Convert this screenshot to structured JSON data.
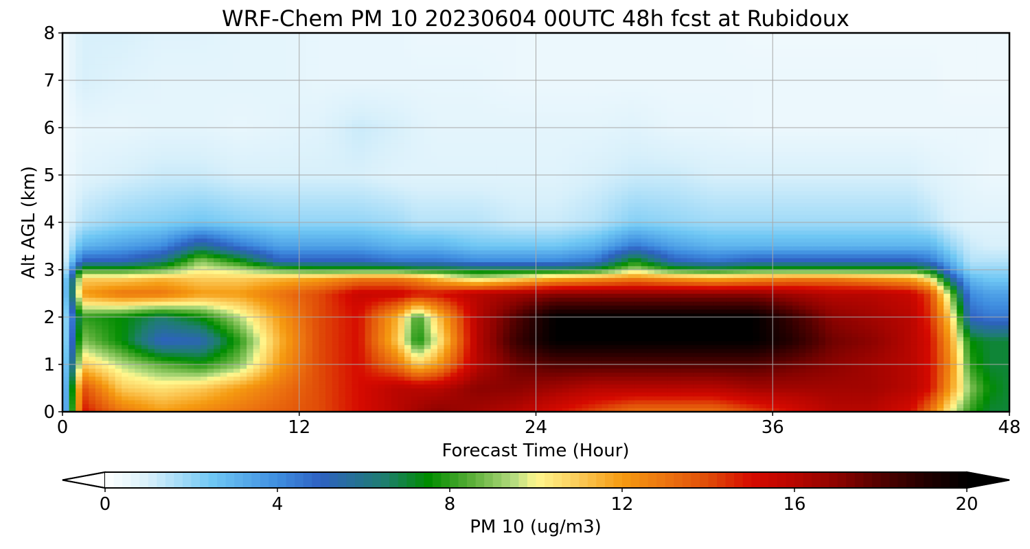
{
  "chart_data": {
    "type": "heatmap",
    "title": "WRF-Chem PM 10  20230604 00UTC 48h fcst at Rubidoux",
    "xlabel": "Forecast Time (Hour)",
    "ylabel": "Alt AGL (km)",
    "xlim": [
      0,
      48
    ],
    "ylim": [
      0,
      8
    ],
    "xticks": [
      "0",
      "12",
      "24",
      "36",
      "48"
    ],
    "yticks": [
      "0",
      "1",
      "2",
      "3",
      "4",
      "5",
      "6",
      "7",
      "8"
    ],
    "grid": true,
    "x": [
      0,
      1,
      3,
      5,
      7,
      9,
      11,
      13,
      15,
      17,
      18,
      19,
      21,
      23,
      25,
      27,
      29,
      31,
      33,
      35,
      37,
      39,
      41,
      43,
      44,
      45,
      46,
      47,
      48
    ],
    "y": [
      0,
      0.5,
      1,
      1.5,
      2,
      2.5,
      2.8,
      3,
      3.2,
      3.5,
      4,
      5,
      6,
      7,
      8
    ],
    "z": [
      [
        1,
        15,
        13,
        12,
        12.5,
        13,
        13.5,
        14,
        15,
        16,
        16.5,
        17,
        16.5,
        16,
        15,
        14,
        13,
        13,
        13,
        14,
        15,
        16,
        16,
        15,
        13,
        10,
        8,
        7,
        7
      ],
      [
        1,
        14,
        11,
        10.5,
        11,
        12,
        13,
        14,
        15,
        16,
        16,
        16,
        17,
        17,
        16.5,
        16,
        16,
        16,
        16,
        16.5,
        16.5,
        16.5,
        16.5,
        16,
        15,
        12,
        9,
        7.5,
        7
      ],
      [
        1,
        11,
        9.5,
        8.5,
        7.8,
        9,
        12,
        14,
        15,
        13,
        11,
        12,
        16,
        17.5,
        18,
        18,
        18,
        18,
        18,
        18,
        17.5,
        17,
        16.5,
        16,
        15,
        12.5,
        8,
        7,
        7
      ],
      [
        1,
        9,
        7.5,
        5,
        5.2,
        8,
        11.5,
        14,
        15,
        11,
        7.5,
        10,
        16,
        18.5,
        20,
        20,
        20,
        20,
        20,
        20,
        19,
        17.5,
        17,
        16,
        15,
        12,
        7.5,
        7,
        7
      ],
      [
        1,
        8,
        7.5,
        6.5,
        7.5,
        9.5,
        12,
        14,
        15,
        11.5,
        8,
        11,
        16,
        18,
        20,
        20,
        20,
        20,
        20,
        20,
        18.5,
        17,
        16.5,
        16,
        14.5,
        11,
        5,
        4.5,
        4.5
      ],
      [
        1,
        12,
        13,
        13,
        12,
        12,
        13,
        14,
        15.5,
        15.5,
        15,
        15,
        16,
        16.5,
        17,
        17,
        17,
        17,
        17,
        17,
        16.5,
        16,
        16,
        15.5,
        14,
        9,
        4,
        3.5,
        3.5
      ],
      [
        1,
        11,
        11,
        11.5,
        11,
        11,
        11.5,
        12,
        13,
        13,
        12.5,
        11.5,
        10,
        11,
        12,
        12.5,
        13,
        12.5,
        12,
        12.5,
        13,
        13,
        12.5,
        12,
        10.5,
        6,
        3,
        2.5,
        2.5
      ],
      [
        0.5,
        8,
        8,
        8.5,
        10,
        9.5,
        8.5,
        8,
        8,
        8,
        7.5,
        7.5,
        7,
        7,
        7,
        7.5,
        9.5,
        8,
        7.5,
        8,
        8,
        8,
        8,
        8,
        7,
        4,
        2,
        2,
        2
      ],
      [
        0.5,
        5,
        5,
        6,
        9,
        7.5,
        5,
        5,
        5,
        4.5,
        4.5,
        4.5,
        4,
        4,
        4,
        4.5,
        7.5,
        5,
        4.5,
        5,
        5,
        5,
        5,
        5,
        4.5,
        3,
        1.5,
        1.5,
        1.5
      ],
      [
        0.5,
        3,
        3.5,
        4,
        6,
        4.5,
        3.5,
        3.5,
        3.5,
        3,
        3,
        3,
        2.5,
        2.5,
        2.5,
        3,
        4.5,
        3.5,
        3,
        3,
        3,
        3,
        3,
        3,
        3,
        2,
        1.2,
        1,
        1
      ],
      [
        0.5,
        1.5,
        2,
        2.2,
        2.5,
        2.2,
        2,
        2,
        2,
        1.8,
        1.5,
        1.5,
        1.5,
        1.2,
        1.2,
        1.5,
        2.2,
        2,
        1.8,
        1.8,
        1.8,
        1.8,
        1.8,
        1.8,
        1.5,
        1,
        0.8,
        0.8,
        0.8
      ],
      [
        0.3,
        0.8,
        1,
        1.2,
        1.2,
        1,
        1,
        1,
        1,
        0.8,
        0.8,
        0.8,
        0.8,
        0.8,
        0.8,
        1,
        1.2,
        1.2,
        1,
        1,
        1,
        1,
        1,
        1,
        0.8,
        0.7,
        0.6,
        0.5,
        0.5
      ],
      [
        0.3,
        0.6,
        0.6,
        0.7,
        0.7,
        0.6,
        0.7,
        0.8,
        1.2,
        1,
        0.8,
        0.7,
        0.7,
        0.7,
        0.7,
        0.7,
        0.8,
        0.6,
        0.6,
        0.5,
        0.5,
        0.5,
        0.5,
        0.5,
        0.5,
        0.5,
        0.5,
        0.5,
        0.5
      ],
      [
        0.3,
        1,
        0.8,
        0.7,
        0.7,
        0.7,
        0.7,
        0.6,
        0.6,
        0.6,
        0.6,
        0.6,
        0.6,
        0.5,
        0.5,
        0.5,
        0.5,
        0.5,
        0.5,
        0.5,
        0.5,
        0.5,
        0.5,
        0.5,
        0.5,
        0.4,
        0.4,
        0.4,
        0.4
      ],
      [
        0.3,
        1,
        1,
        0.8,
        0.8,
        0.7,
        0.7,
        0.6,
        0.6,
        0.6,
        0.5,
        0.5,
        0.5,
        0.5,
        0.5,
        0.5,
        0.5,
        0.5,
        0.5,
        0.4,
        0.4,
        0.4,
        0.4,
        0.4,
        0.4,
        0.4,
        0.4,
        0.4,
        0.4
      ]
    ],
    "colorbar": {
      "label": "PM 10  (ug/m3)",
      "range": [
        0,
        20
      ],
      "ticks": [
        "0",
        "4",
        "8",
        "12",
        "16",
        "20"
      ],
      "extend": "both",
      "orientation": "horizontal",
      "placement": "bottom",
      "colormap": [
        [
          0,
          "#ffffff"
        ],
        [
          1,
          "#d8f0fb"
        ],
        [
          2.5,
          "#6fc7f4"
        ],
        [
          4,
          "#3f8ee0"
        ],
        [
          5,
          "#2e61c2"
        ],
        [
          6.5,
          "#1e7e6e"
        ],
        [
          7.5,
          "#008c00"
        ],
        [
          8.5,
          "#5aae38"
        ],
        [
          9.5,
          "#b6dc80"
        ],
        [
          10,
          "#fff88e"
        ],
        [
          11,
          "#fbca58"
        ],
        [
          12,
          "#f59a10"
        ],
        [
          13,
          "#ec7410"
        ],
        [
          14,
          "#e04c08"
        ],
        [
          15,
          "#d60a00"
        ],
        [
          16,
          "#b80600"
        ],
        [
          17,
          "#8c0300"
        ],
        [
          18,
          "#520100"
        ],
        [
          19,
          "#240000"
        ],
        [
          20,
          "#000000"
        ]
      ]
    }
  }
}
